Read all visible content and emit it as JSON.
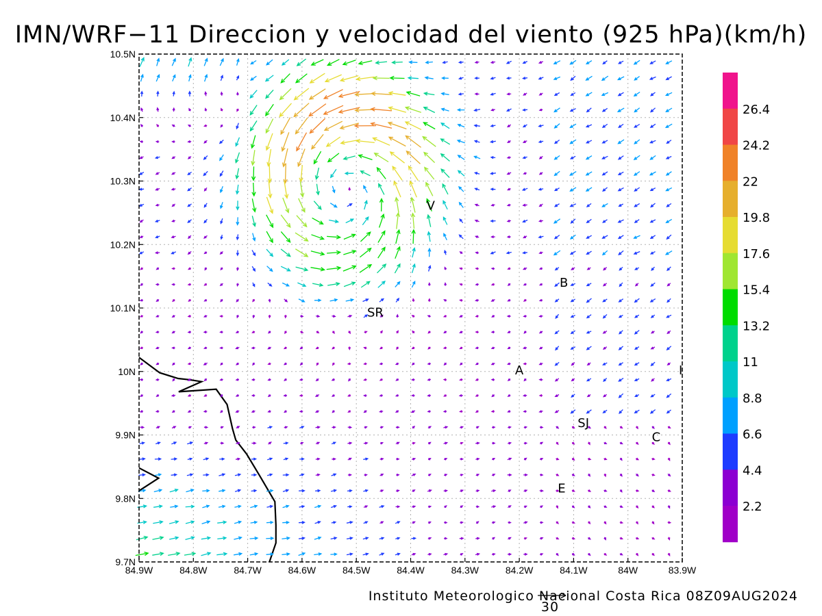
{
  "chart_data": {
    "type": "wind-vector-map",
    "title": "IMN/WRF−11 Direccion y velocidad del viento (925 hPa)(km/h)",
    "footer": "Instituto Meteorologico Nacional Costa Rica 08Z09AUG2024",
    "reference_vector_label": "30",
    "lon_range": [
      -84.9,
      -83.9
    ],
    "lat_range": [
      9.7,
      10.5
    ],
    "x_ticks": [
      {
        "value": -84.9,
        "label": "84.9W"
      },
      {
        "value": -84.8,
        "label": "84.8W"
      },
      {
        "value": -84.7,
        "label": "84.7W"
      },
      {
        "value": -84.6,
        "label": "84.6W"
      },
      {
        "value": -84.5,
        "label": "84.5W"
      },
      {
        "value": -84.4,
        "label": "84.4W"
      },
      {
        "value": -84.3,
        "label": "84.3W"
      },
      {
        "value": -84.2,
        "label": "84.2W"
      },
      {
        "value": -84.1,
        "label": "84.1W"
      },
      {
        "value": -84.0,
        "label": "84W"
      },
      {
        "value": -83.9,
        "label": "83.9W"
      }
    ],
    "y_ticks": [
      {
        "value": 10.5,
        "label": "10.5N"
      },
      {
        "value": 10.4,
        "label": "10.4N"
      },
      {
        "value": 10.3,
        "label": "10.3N"
      },
      {
        "value": 10.2,
        "label": "10.2N"
      },
      {
        "value": 10.1,
        "label": "10.1N"
      },
      {
        "value": 10.0,
        "label": "10N"
      },
      {
        "value": 9.9,
        "label": "9.9N"
      },
      {
        "value": 9.8,
        "label": "9.8N"
      },
      {
        "value": 9.7,
        "label": "9.7N"
      }
    ],
    "grid": true,
    "places": [
      {
        "label": "V",
        "lon": -84.363,
        "lat": 10.262
      },
      {
        "label": "B",
        "lon": -84.118,
        "lat": 10.141
      },
      {
        "label": "SR",
        "lon": -84.465,
        "lat": 10.094
      },
      {
        "label": "A",
        "lon": -84.2,
        "lat": 10.003
      },
      {
        "label": "I",
        "lon": -83.903,
        "lat": 10.003
      },
      {
        "label": "SJ",
        "lon": -84.082,
        "lat": 9.92
      },
      {
        "label": "C",
        "lon": -83.948,
        "lat": 9.898
      },
      {
        "label": "E",
        "lon": -84.122,
        "lat": 9.817
      }
    ],
    "coastline": [
      [
        -84.9,
        10.022
      ],
      [
        -84.862,
        9.998
      ],
      [
        -84.828,
        9.989
      ],
      [
        -84.807,
        9.987
      ],
      [
        -84.785,
        9.984
      ],
      [
        -84.827,
        9.968
      ],
      [
        -84.758,
        9.972
      ],
      [
        -84.738,
        9.948
      ],
      [
        -84.728,
        9.91
      ],
      [
        -84.722,
        9.892
      ],
      [
        -84.702,
        9.87
      ],
      [
        -84.678,
        9.836
      ],
      [
        -84.65,
        9.795
      ],
      [
        -84.648,
        9.758
      ],
      [
        -84.648,
        9.73
      ],
      [
        -84.66,
        9.7
      ]
    ],
    "coastline_inset": [
      [
        -84.9,
        9.812
      ],
      [
        -84.864,
        9.832
      ],
      [
        -84.9,
        9.848
      ]
    ],
    "colorbar": {
      "labels": [
        "26.4",
        "24.2",
        "22",
        "19.8",
        "17.6",
        "15.4",
        "13.2",
        "11",
        "8.8",
        "6.6",
        "4.4",
        "2.2"
      ],
      "colors": [
        "#f0148c",
        "#f04646",
        "#f08228",
        "#e6af2d",
        "#e6dc32",
        "#a0e632",
        "#00dc00",
        "#00d28c",
        "#00c8c8",
        "#00a0ff",
        "#1e3cff",
        "#8c00d2",
        "#a000c8"
      ]
    }
  }
}
